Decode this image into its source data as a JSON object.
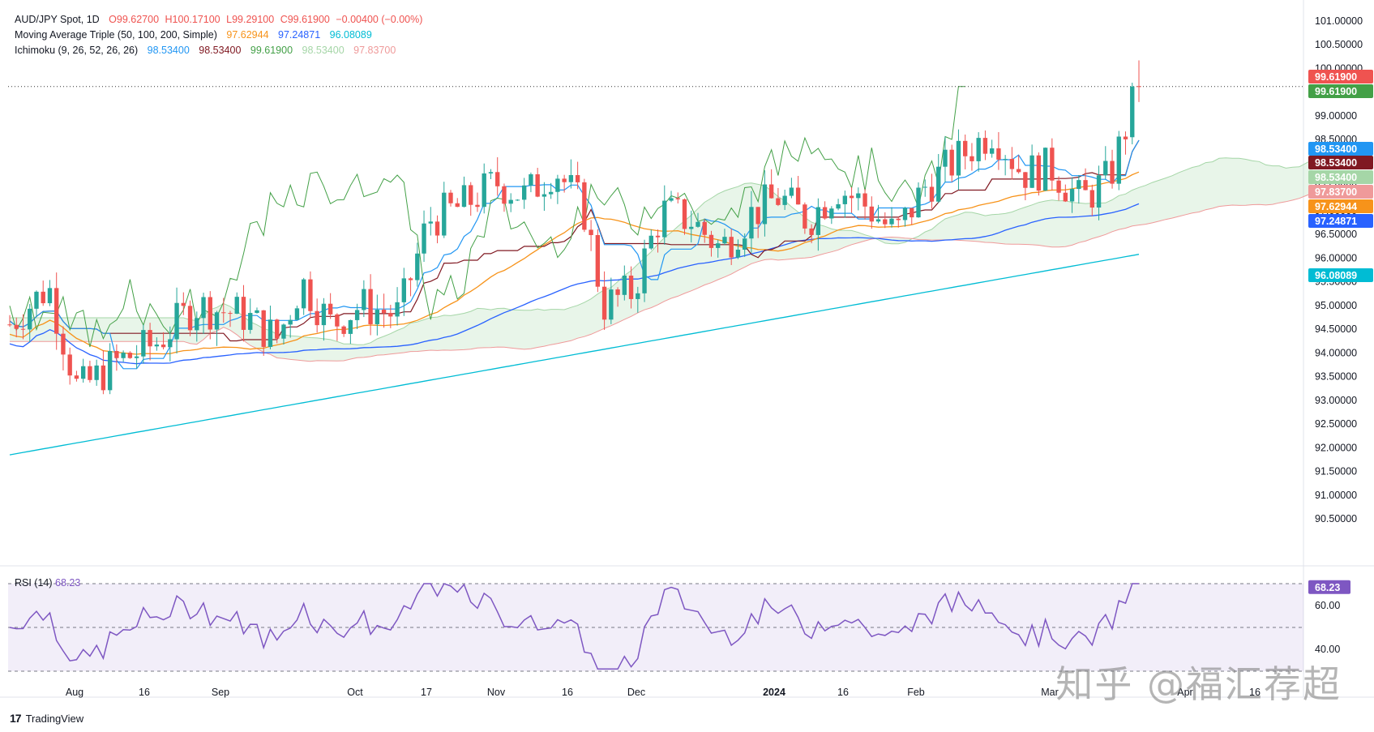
{
  "header": {
    "symbol": "AUD/JPY Spot, 1D",
    "ohlc": {
      "o": "O99.62700",
      "h": "H100.17100",
      "l": "L99.29100",
      "c": "C99.61900",
      "chg": "−0.00400 (−0.00%)"
    },
    "ma_label": "Moving Average Triple (50, 100, 200, Simple)",
    "ma_values": [
      "97.62944",
      "97.24871",
      "96.08089"
    ],
    "ichi_label": "Ichimoku (9, 26, 52, 26, 26)",
    "ichi_values": [
      "98.53400",
      "98.53400",
      "99.61900",
      "98.53400",
      "97.83700"
    ],
    "rsi_label": "RSI (14)",
    "rsi_value": "68.23"
  },
  "branding": {
    "name": "TradingView",
    "mark": "17"
  },
  "watermark": "知乎 @福汇荐超",
  "colors": {
    "up": "#26a69a",
    "down": "#ef5350",
    "ma50": "#f7931a",
    "ma100": "#2962ff",
    "ma200": "#00bcd4",
    "tenkan": "#2196f3",
    "kijun": "#801922",
    "chikou": "#43a047",
    "spanA": "#a5d6a7",
    "spanB": "#ef9a9a",
    "rsi": "#7e57c2"
  },
  "chart_data": {
    "type": "candlestick",
    "title": "AUD/JPY Spot, 1D",
    "ylim": [
      90.5,
      101.0
    ],
    "y_ticks": [
      "101.00000",
      "100.50000",
      "100.00000",
      "99.50000",
      "99.00000",
      "98.50000",
      "98.00000",
      "97.50000",
      "97.00000",
      "96.50000",
      "96.00000",
      "95.50000",
      "95.00000",
      "94.50000",
      "94.00000",
      "93.50000",
      "93.00000",
      "92.50000",
      "92.00000",
      "91.50000",
      "91.00000",
      "90.50000"
    ],
    "x_labels": [
      "Aug",
      "16",
      "Sep",
      "Oct",
      "17",
      "Nov",
      "16",
      "Dec",
      "2024",
      "16",
      "Feb",
      "Mar",
      "Apr",
      "16"
    ],
    "price_labels": [
      {
        "value": "99.61900",
        "color": "#ef5350"
      },
      {
        "value": "99.61900",
        "color": "#43a047"
      },
      {
        "value": "98.53400",
        "color": "#2196f3"
      },
      {
        "value": "98.53400",
        "color": "#801922"
      },
      {
        "value": "98.53400",
        "color": "#a5d6a7"
      },
      {
        "value": "97.83700",
        "color": "#ef9a9a"
      },
      {
        "value": "97.62944",
        "color": "#f7931a"
      },
      {
        "value": "97.24871",
        "color": "#2962ff"
      },
      {
        "value": "96.08089",
        "color": "#00bcd4"
      }
    ],
    "rsi": {
      "ylim": [
        30,
        80
      ],
      "ticks": [
        "60.00",
        "40.00"
      ],
      "levels": [
        70,
        50,
        30
      ],
      "last": "68.23"
    }
  }
}
